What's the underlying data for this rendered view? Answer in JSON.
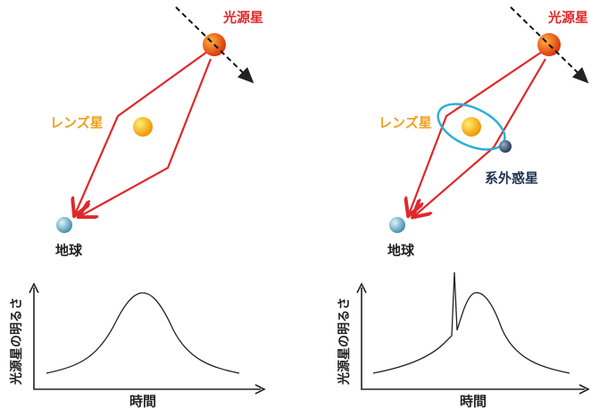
{
  "panels": [
    {
      "source": "光源星",
      "lens": "レンズ星",
      "earth": "地球",
      "y_axis": "光源星の明るさ",
      "x_axis": "時間"
    },
    {
      "source": "光源星",
      "lens": "レンズ星",
      "planet": "系外惑星",
      "earth": "地球",
      "y_axis": "光源星の明るさ",
      "x_axis": "時間"
    }
  ]
}
